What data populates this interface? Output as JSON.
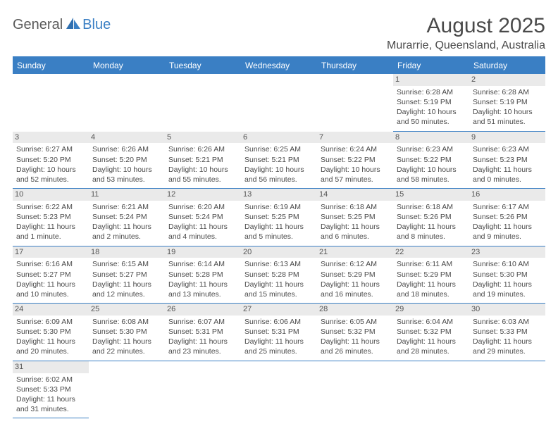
{
  "logo": {
    "part1": "General",
    "part2": "Blue"
  },
  "title": "August 2025",
  "location": "Murarrie, Queensland, Australia",
  "colors": {
    "header_bg": "#3a7fc4",
    "header_text": "#ffffff",
    "day_num_bg": "#eaeaea",
    "row_divider": "#3a7fc4",
    "cell_top_border": "#999999",
    "logo_gray": "#5a5a5a",
    "logo_blue": "#3a7fc4",
    "text": "#4a4a4a"
  },
  "weekdays": [
    "Sunday",
    "Monday",
    "Tuesday",
    "Wednesday",
    "Thursday",
    "Friday",
    "Saturday"
  ],
  "weeks": [
    [
      {
        "empty": true
      },
      {
        "empty": true
      },
      {
        "empty": true
      },
      {
        "empty": true
      },
      {
        "empty": true
      },
      {
        "day": "1",
        "sunrise": "Sunrise: 6:28 AM",
        "sunset": "Sunset: 5:19 PM",
        "daylight1": "Daylight: 10 hours",
        "daylight2": "and 50 minutes."
      },
      {
        "day": "2",
        "sunrise": "Sunrise: 6:28 AM",
        "sunset": "Sunset: 5:19 PM",
        "daylight1": "Daylight: 10 hours",
        "daylight2": "and 51 minutes."
      }
    ],
    [
      {
        "day": "3",
        "sunrise": "Sunrise: 6:27 AM",
        "sunset": "Sunset: 5:20 PM",
        "daylight1": "Daylight: 10 hours",
        "daylight2": "and 52 minutes."
      },
      {
        "day": "4",
        "sunrise": "Sunrise: 6:26 AM",
        "sunset": "Sunset: 5:20 PM",
        "daylight1": "Daylight: 10 hours",
        "daylight2": "and 53 minutes."
      },
      {
        "day": "5",
        "sunrise": "Sunrise: 6:26 AM",
        "sunset": "Sunset: 5:21 PM",
        "daylight1": "Daylight: 10 hours",
        "daylight2": "and 55 minutes."
      },
      {
        "day": "6",
        "sunrise": "Sunrise: 6:25 AM",
        "sunset": "Sunset: 5:21 PM",
        "daylight1": "Daylight: 10 hours",
        "daylight2": "and 56 minutes."
      },
      {
        "day": "7",
        "sunrise": "Sunrise: 6:24 AM",
        "sunset": "Sunset: 5:22 PM",
        "daylight1": "Daylight: 10 hours",
        "daylight2": "and 57 minutes."
      },
      {
        "day": "8",
        "sunrise": "Sunrise: 6:23 AM",
        "sunset": "Sunset: 5:22 PM",
        "daylight1": "Daylight: 10 hours",
        "daylight2": "and 58 minutes."
      },
      {
        "day": "9",
        "sunrise": "Sunrise: 6:23 AM",
        "sunset": "Sunset: 5:23 PM",
        "daylight1": "Daylight: 11 hours",
        "daylight2": "and 0 minutes."
      }
    ],
    [
      {
        "day": "10",
        "sunrise": "Sunrise: 6:22 AM",
        "sunset": "Sunset: 5:23 PM",
        "daylight1": "Daylight: 11 hours",
        "daylight2": "and 1 minute."
      },
      {
        "day": "11",
        "sunrise": "Sunrise: 6:21 AM",
        "sunset": "Sunset: 5:24 PM",
        "daylight1": "Daylight: 11 hours",
        "daylight2": "and 2 minutes."
      },
      {
        "day": "12",
        "sunrise": "Sunrise: 6:20 AM",
        "sunset": "Sunset: 5:24 PM",
        "daylight1": "Daylight: 11 hours",
        "daylight2": "and 4 minutes."
      },
      {
        "day": "13",
        "sunrise": "Sunrise: 6:19 AM",
        "sunset": "Sunset: 5:25 PM",
        "daylight1": "Daylight: 11 hours",
        "daylight2": "and 5 minutes."
      },
      {
        "day": "14",
        "sunrise": "Sunrise: 6:18 AM",
        "sunset": "Sunset: 5:25 PM",
        "daylight1": "Daylight: 11 hours",
        "daylight2": "and 6 minutes."
      },
      {
        "day": "15",
        "sunrise": "Sunrise: 6:18 AM",
        "sunset": "Sunset: 5:26 PM",
        "daylight1": "Daylight: 11 hours",
        "daylight2": "and 8 minutes."
      },
      {
        "day": "16",
        "sunrise": "Sunrise: 6:17 AM",
        "sunset": "Sunset: 5:26 PM",
        "daylight1": "Daylight: 11 hours",
        "daylight2": "and 9 minutes."
      }
    ],
    [
      {
        "day": "17",
        "sunrise": "Sunrise: 6:16 AM",
        "sunset": "Sunset: 5:27 PM",
        "daylight1": "Daylight: 11 hours",
        "daylight2": "and 10 minutes."
      },
      {
        "day": "18",
        "sunrise": "Sunrise: 6:15 AM",
        "sunset": "Sunset: 5:27 PM",
        "daylight1": "Daylight: 11 hours",
        "daylight2": "and 12 minutes."
      },
      {
        "day": "19",
        "sunrise": "Sunrise: 6:14 AM",
        "sunset": "Sunset: 5:28 PM",
        "daylight1": "Daylight: 11 hours",
        "daylight2": "and 13 minutes."
      },
      {
        "day": "20",
        "sunrise": "Sunrise: 6:13 AM",
        "sunset": "Sunset: 5:28 PM",
        "daylight1": "Daylight: 11 hours",
        "daylight2": "and 15 minutes."
      },
      {
        "day": "21",
        "sunrise": "Sunrise: 6:12 AM",
        "sunset": "Sunset: 5:29 PM",
        "daylight1": "Daylight: 11 hours",
        "daylight2": "and 16 minutes."
      },
      {
        "day": "22",
        "sunrise": "Sunrise: 6:11 AM",
        "sunset": "Sunset: 5:29 PM",
        "daylight1": "Daylight: 11 hours",
        "daylight2": "and 18 minutes."
      },
      {
        "day": "23",
        "sunrise": "Sunrise: 6:10 AM",
        "sunset": "Sunset: 5:30 PM",
        "daylight1": "Daylight: 11 hours",
        "daylight2": "and 19 minutes."
      }
    ],
    [
      {
        "day": "24",
        "sunrise": "Sunrise: 6:09 AM",
        "sunset": "Sunset: 5:30 PM",
        "daylight1": "Daylight: 11 hours",
        "daylight2": "and 20 minutes."
      },
      {
        "day": "25",
        "sunrise": "Sunrise: 6:08 AM",
        "sunset": "Sunset: 5:30 PM",
        "daylight1": "Daylight: 11 hours",
        "daylight2": "and 22 minutes."
      },
      {
        "day": "26",
        "sunrise": "Sunrise: 6:07 AM",
        "sunset": "Sunset: 5:31 PM",
        "daylight1": "Daylight: 11 hours",
        "daylight2": "and 23 minutes."
      },
      {
        "day": "27",
        "sunrise": "Sunrise: 6:06 AM",
        "sunset": "Sunset: 5:31 PM",
        "daylight1": "Daylight: 11 hours",
        "daylight2": "and 25 minutes."
      },
      {
        "day": "28",
        "sunrise": "Sunrise: 6:05 AM",
        "sunset": "Sunset: 5:32 PM",
        "daylight1": "Daylight: 11 hours",
        "daylight2": "and 26 minutes."
      },
      {
        "day": "29",
        "sunrise": "Sunrise: 6:04 AM",
        "sunset": "Sunset: 5:32 PM",
        "daylight1": "Daylight: 11 hours",
        "daylight2": "and 28 minutes."
      },
      {
        "day": "30",
        "sunrise": "Sunrise: 6:03 AM",
        "sunset": "Sunset: 5:33 PM",
        "daylight1": "Daylight: 11 hours",
        "daylight2": "and 29 minutes."
      }
    ],
    [
      {
        "day": "31",
        "sunrise": "Sunrise: 6:02 AM",
        "sunset": "Sunset: 5:33 PM",
        "daylight1": "Daylight: 11 hours",
        "daylight2": "and 31 minutes."
      },
      {
        "trailing": true
      },
      {
        "trailing": true
      },
      {
        "trailing": true
      },
      {
        "trailing": true
      },
      {
        "trailing": true
      },
      {
        "trailing": true
      }
    ]
  ]
}
